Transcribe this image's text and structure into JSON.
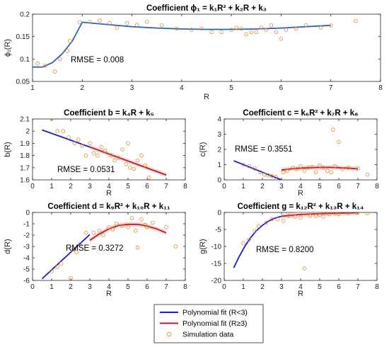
{
  "legend": {
    "entries": [
      {
        "label": "Polynomial fit (R<3)",
        "color": "#1a1adc",
        "kind": "line"
      },
      {
        "label": "Polynomial fit (R≥3)",
        "color": "#b22222",
        "kind": "line"
      },
      {
        "label": "Simulation data",
        "color": "#e08a2a",
        "kind": "marker"
      }
    ]
  },
  "colors": {
    "fit_low": "#1a1adc",
    "fit_high": "#b22222",
    "data_marker": "#e08a2a",
    "confidence_band": "#f8c8cf",
    "fit_full": "#2e63b8"
  },
  "chart_data": [
    {
      "id": "phi1",
      "type": "scatter",
      "title": "Coefficient ϕ₁ = k₁R² + k₂R + k₃",
      "xlabel": "R",
      "ylabel": "ϕ₁(R)",
      "xlim": [
        1,
        8
      ],
      "ylim": [
        0.05,
        0.2
      ],
      "xticks": [
        "1",
        "2",
        "3",
        "4",
        "5",
        "6",
        "7",
        "8"
      ],
      "yticks": [
        "0.05",
        "0.1",
        "0.15",
        "0.2"
      ],
      "annotation": "RMSE = 0.008",
      "grid": false,
      "fit": [
        {
          "name": "fit",
          "x": [
            1.0,
            1.2,
            1.4,
            1.6,
            1.8,
            2.0,
            2.5,
            3.0,
            3.5,
            4.0,
            4.5,
            5.0,
            5.5,
            6.0,
            6.5,
            7.0
          ],
          "y": [
            0.082,
            0.082,
            0.092,
            0.112,
            0.14,
            0.182,
            0.177,
            0.172,
            0.169,
            0.167,
            0.166,
            0.166,
            0.167,
            0.169,
            0.172,
            0.175
          ]
        }
      ],
      "points": {
        "x": [
          1.1,
          1.25,
          1.45,
          1.55,
          1.7,
          1.75,
          1.95,
          2.15,
          2.35,
          2.55,
          2.7,
          2.9,
          3.1,
          3.3,
          3.6,
          3.9,
          4.2,
          4.4,
          4.6,
          4.8,
          5.0,
          5.1,
          5.2,
          5.3,
          5.4,
          5.5,
          5.6,
          5.7,
          5.8,
          5.9,
          6.0,
          6.1,
          6.3,
          6.5,
          6.8,
          7.0,
          7.5
        ],
        "y": [
          0.09,
          0.085,
          0.072,
          0.1,
          0.118,
          0.14,
          0.182,
          0.183,
          0.186,
          0.18,
          0.17,
          0.18,
          0.176,
          0.183,
          0.175,
          0.168,
          0.165,
          0.168,
          0.16,
          0.16,
          0.165,
          0.17,
          0.168,
          0.155,
          0.16,
          0.16,
          0.17,
          0.165,
          0.175,
          0.16,
          0.145,
          0.165,
          0.168,
          0.175,
          0.17,
          0.175,
          0.185
        ]
      },
      "band": false
    },
    {
      "id": "b",
      "type": "scatter",
      "title": "Coefficient b = k₄R + k₅",
      "xlabel": "R",
      "ylabel": "b(R)",
      "xlim": [
        0,
        8
      ],
      "ylim": [
        1.6,
        2.1
      ],
      "xticks": [
        "0",
        "1",
        "2",
        "3",
        "4",
        "5",
        "6",
        "7",
        "8"
      ],
      "yticks": [
        "1.6",
        "1.7",
        "1.8",
        "1.9",
        "2",
        "2.1"
      ],
      "annotation": "RMSE = 0.0531",
      "grid": false,
      "fit": [
        {
          "name": "low",
          "x": [
            0.5,
            3.0
          ],
          "y": [
            2.01,
            1.87
          ]
        },
        {
          "name": "high",
          "x": [
            3.0,
            7.0
          ],
          "y": [
            1.87,
            1.64
          ]
        }
      ],
      "points": {
        "x": [
          1.0,
          1.3,
          1.6,
          1.9,
          2.2,
          2.4,
          2.6,
          2.8,
          3.0,
          3.2,
          3.4,
          3.6,
          3.8,
          4.1,
          4.3,
          4.5,
          4.7,
          4.9,
          5.0,
          5.1,
          5.3,
          5.5,
          5.7,
          5.9,
          6.1
        ],
        "y": [
          2.1,
          2.0,
          2.0,
          1.95,
          1.9,
          1.93,
          1.88,
          1.8,
          1.9,
          1.82,
          1.8,
          1.87,
          1.84,
          1.8,
          1.76,
          1.78,
          1.85,
          1.73,
          1.9,
          1.7,
          1.69,
          1.76,
          1.8,
          1.72,
          1.62
        ]
      },
      "band": true
    },
    {
      "id": "c",
      "type": "scatter",
      "title": "Coefficient c = k₆R² + k₇R + k₈",
      "xlabel": "R",
      "ylabel": "c(R)",
      "xlim": [
        0,
        8
      ],
      "ylim": [
        0,
        4
      ],
      "xticks": [
        "0",
        "1",
        "2",
        "3",
        "4",
        "5",
        "6",
        "7",
        "8"
      ],
      "yticks": [
        "0",
        "1",
        "2",
        "3",
        "4"
      ],
      "annotation": "RMSE = 0.3551",
      "grid": false,
      "fit": [
        {
          "name": "low",
          "x": [
            0.5,
            3.0
          ],
          "y": [
            1.25,
            0.0
          ]
        },
        {
          "name": "high",
          "x": [
            3.0,
            3.5,
            4.0,
            4.5,
            5.0,
            5.5,
            6.0,
            6.5,
            7.0
          ],
          "y": [
            0.65,
            0.72,
            0.77,
            0.8,
            0.82,
            0.82,
            0.8,
            0.77,
            0.72
          ]
        }
      ],
      "points": {
        "x": [
          1.0,
          1.3,
          1.6,
          1.9,
          2.1,
          2.3,
          2.5,
          2.7,
          3.1,
          3.3,
          3.6,
          3.8,
          4.0,
          4.2,
          4.4,
          4.6,
          4.8,
          5.0,
          5.2,
          5.4,
          5.6,
          5.7,
          5.8,
          6.0,
          6.2,
          6.5,
          7.0,
          7.5
        ],
        "y": [
          1.0,
          0.9,
          0.75,
          0.5,
          0.35,
          0.3,
          0.25,
          0.2,
          0.5,
          0.6,
          0.8,
          0.7,
          0.9,
          0.6,
          0.8,
          0.85,
          0.5,
          0.95,
          0.8,
          0.6,
          0.5,
          3.3,
          0.9,
          2.5,
          0.7,
          0.8,
          0.75,
          0.35
        ]
      },
      "band": true
    },
    {
      "id": "d",
      "type": "scatter",
      "title": "Coefficient d = k₉R² + k₁₀R + k₁₁",
      "xlabel": "R",
      "ylabel": "d(R)",
      "xlim": [
        0,
        8
      ],
      "ylim": [
        -6,
        0
      ],
      "xticks": [
        "0",
        "1",
        "2",
        "3",
        "4",
        "5",
        "6",
        "7",
        "8"
      ],
      "yticks": [
        "-6",
        "-5",
        "-4",
        "-3",
        "-2",
        "-1",
        "0"
      ],
      "annotation": "RMSE = 0.3272",
      "grid": false,
      "fit": [
        {
          "name": "low",
          "x": [
            0.5,
            3.0
          ],
          "y": [
            -5.85,
            -1.95
          ]
        },
        {
          "name": "high",
          "x": [
            3.0,
            3.5,
            4.0,
            4.5,
            5.0,
            5.5,
            6.0,
            6.5,
            7.0
          ],
          "y": [
            -2.45,
            -1.9,
            -1.45,
            -1.15,
            -1.05,
            -1.05,
            -1.2,
            -1.45,
            -1.8
          ]
        }
      ],
      "points": {
        "x": [
          1.0,
          1.3,
          1.5,
          2.0,
          2.1,
          2.3,
          2.5,
          2.8,
          3.2,
          3.5,
          3.7,
          4.0,
          4.2,
          4.4,
          4.7,
          5.0,
          5.2,
          5.4,
          5.5,
          5.7,
          5.9,
          6.0,
          6.3,
          7.0,
          7.5
        ],
        "y": [
          -5.2,
          -4.8,
          -4.5,
          -5.8,
          -3.3,
          -3.5,
          -2.8,
          -1.8,
          -1.8,
          -1.6,
          -2.0,
          -1.3,
          -1.5,
          -1.0,
          -1.2,
          -1.3,
          -0.5,
          -1.6,
          -3.1,
          -0.6,
          -1.1,
          -1.3,
          -0.9,
          -1.3,
          -3.0
        ]
      },
      "band": true
    },
    {
      "id": "g",
      "type": "scatter",
      "title": "Coefficient g = k₁₂R² + k₁₃R + k₁₄",
      "xlabel": "R",
      "ylabel": "g(R)",
      "xlim": [
        0,
        8
      ],
      "ylim": [
        -20,
        0
      ],
      "xticks": [
        "0",
        "1",
        "2",
        "3",
        "4",
        "5",
        "6",
        "7",
        "8"
      ],
      "yticks": [
        "-20",
        "-15",
        "-10",
        "-5",
        "0"
      ],
      "annotation": "RMSE = 0.8200",
      "grid": false,
      "fit": [
        {
          "name": "low",
          "x": [
            0.5,
            0.8,
            1.1,
            1.4,
            1.7,
            2.0,
            2.3,
            2.6,
            3.0
          ],
          "y": [
            -16.3,
            -12.8,
            -9.8,
            -7.3,
            -5.3,
            -3.8,
            -2.6,
            -1.8,
            -1.1
          ]
        },
        {
          "name": "high",
          "x": [
            3.0,
            4.0,
            5.0,
            6.0,
            7.0
          ],
          "y": [
            -1.1,
            -0.6,
            -0.35,
            -0.2,
            -0.1
          ]
        }
      ],
      "points": {
        "x": [
          1.0,
          1.3,
          1.6,
          1.8,
          2.2,
          2.5,
          2.8,
          3.1,
          3.4,
          3.7,
          4.0,
          4.2,
          4.5,
          4.8,
          5.0,
          5.2,
          5.5,
          5.8,
          6.0,
          6.5,
          7.0,
          7.5
        ],
        "y": [
          -9.0,
          -8.0,
          -5.5,
          -4.0,
          -3.0,
          -2.0,
          -2.0,
          -2.5,
          -1.0,
          -1.3,
          -1.5,
          -16.5,
          -1.0,
          -1.0,
          -0.8,
          -1.2,
          -0.5,
          -0.3,
          -0.5,
          -0.2,
          -0.1,
          -0.2
        ]
      },
      "band": true
    }
  ]
}
